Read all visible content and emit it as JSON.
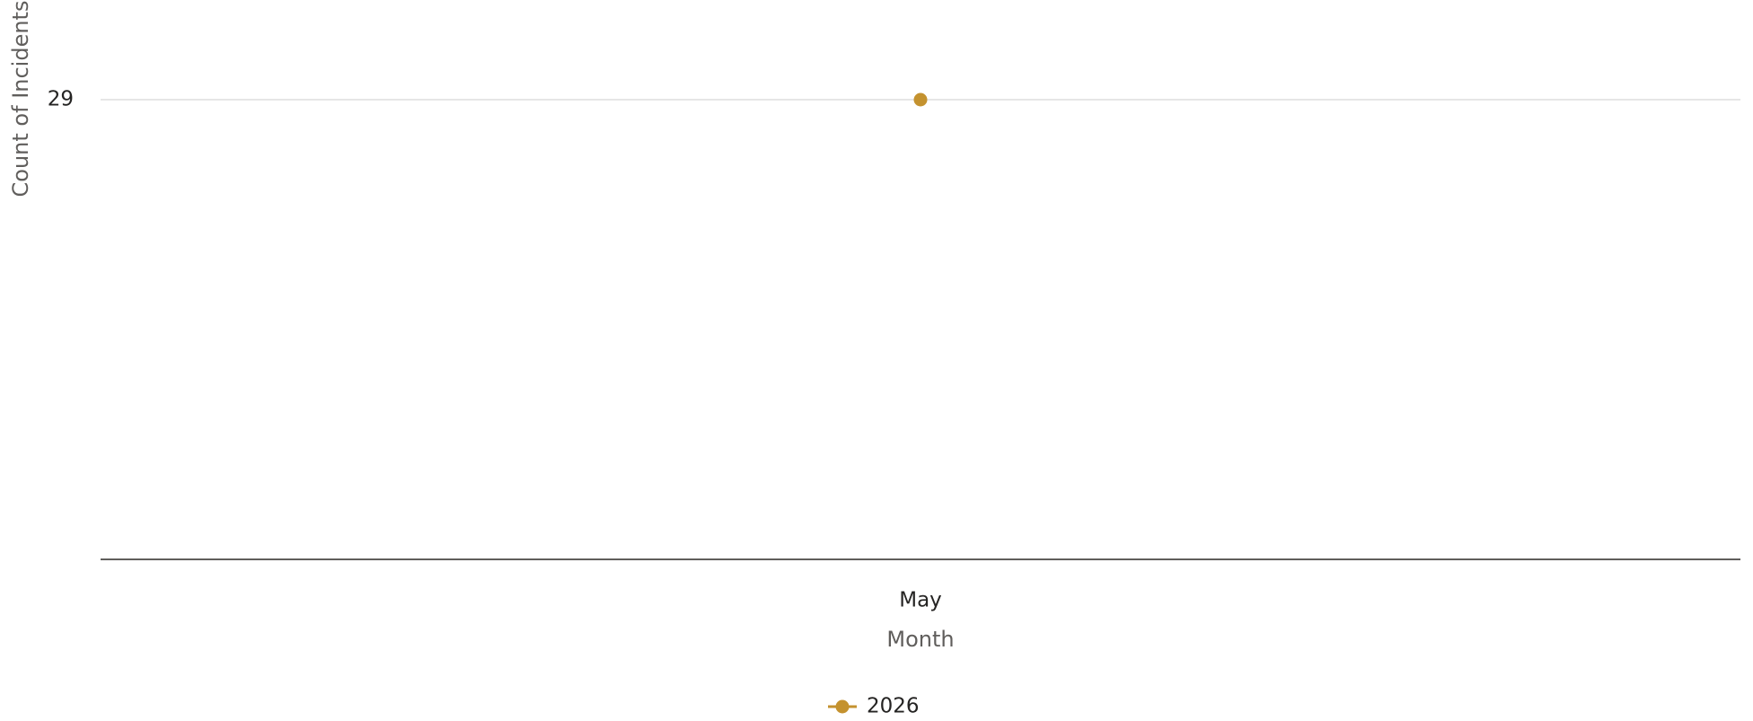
{
  "chart_data": {
    "type": "line",
    "x_label": "Month",
    "y_label": "Count of Incidents",
    "categories": [
      "May"
    ],
    "series": [
      {
        "name": "2026",
        "color": "#c4922f",
        "values": [
          29
        ]
      }
    ],
    "ylim": [
      0,
      29
    ],
    "yticks": [
      29
    ],
    "grid": true,
    "legend": "bottom"
  }
}
